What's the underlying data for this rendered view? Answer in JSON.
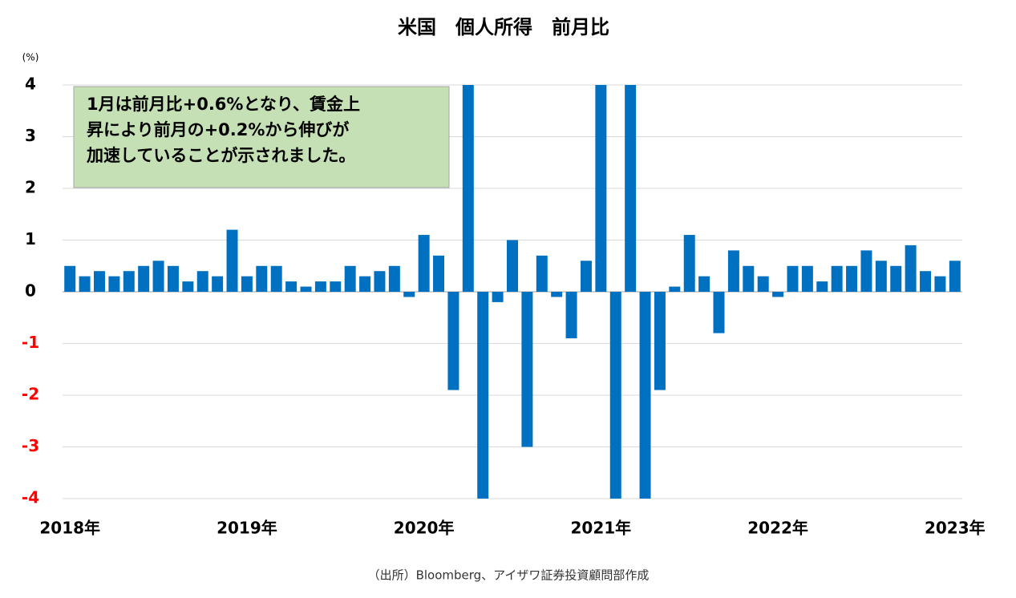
{
  "chart_data": {
    "type": "bar",
    "title": "米国　個人所得　前月比",
    "unit_label": "(%)",
    "annotation_lines": [
      "1月は前月比+0.6%となり、賃金上",
      "昇により前月の+0.2%から伸びが",
      "加速していることが示されました。"
    ],
    "source": "（出所）Bloomberg、アイザワ証券投資顧問部作成",
    "categories": [
      "2018年",
      null,
      null,
      null,
      null,
      null,
      null,
      null,
      null,
      null,
      null,
      null,
      "2019年",
      null,
      null,
      null,
      null,
      null,
      null,
      null,
      null,
      null,
      null,
      null,
      "2020年",
      null,
      null,
      null,
      null,
      null,
      null,
      null,
      null,
      null,
      null,
      null,
      "2021年",
      null,
      null,
      null,
      null,
      null,
      null,
      null,
      null,
      null,
      null,
      null,
      "2022年",
      null,
      null,
      null,
      null,
      null,
      null,
      null,
      null,
      null,
      null,
      null,
      "2023年"
    ],
    "values": [
      0.5,
      0.3,
      0.4,
      0.3,
      0.4,
      0.5,
      0.6,
      0.5,
      0.2,
      0.4,
      0.3,
      1.2,
      0.3,
      0.5,
      0.5,
      0.2,
      0.1,
      0.2,
      0.2,
      0.5,
      0.3,
      0.4,
      0.5,
      -0.1,
      1.1,
      0.7,
      -1.9,
      4,
      -4,
      -0.2,
      1.0,
      -3.0,
      0.7,
      -0.1,
      -0.9,
      0.6,
      4,
      -4,
      4,
      -4,
      -1.9,
      0.1,
      1.1,
      0.3,
      -0.8,
      0.8,
      0.5,
      0.3,
      -0.1,
      0.5,
      0.5,
      0.2,
      0.5,
      0.5,
      0.8,
      0.6,
      0.5,
      0.9,
      0.4,
      0.3,
      0.6
    ],
    "color": "#0070c0",
    "negative_tick_color": "#ff0000",
    "annotation_color": "#c5e0b4",
    "ylim": [
      -4,
      4
    ],
    "yticks": [
      -4,
      -3,
      -2,
      -1,
      0,
      1,
      2,
      3,
      4
    ],
    "grid": true
  }
}
